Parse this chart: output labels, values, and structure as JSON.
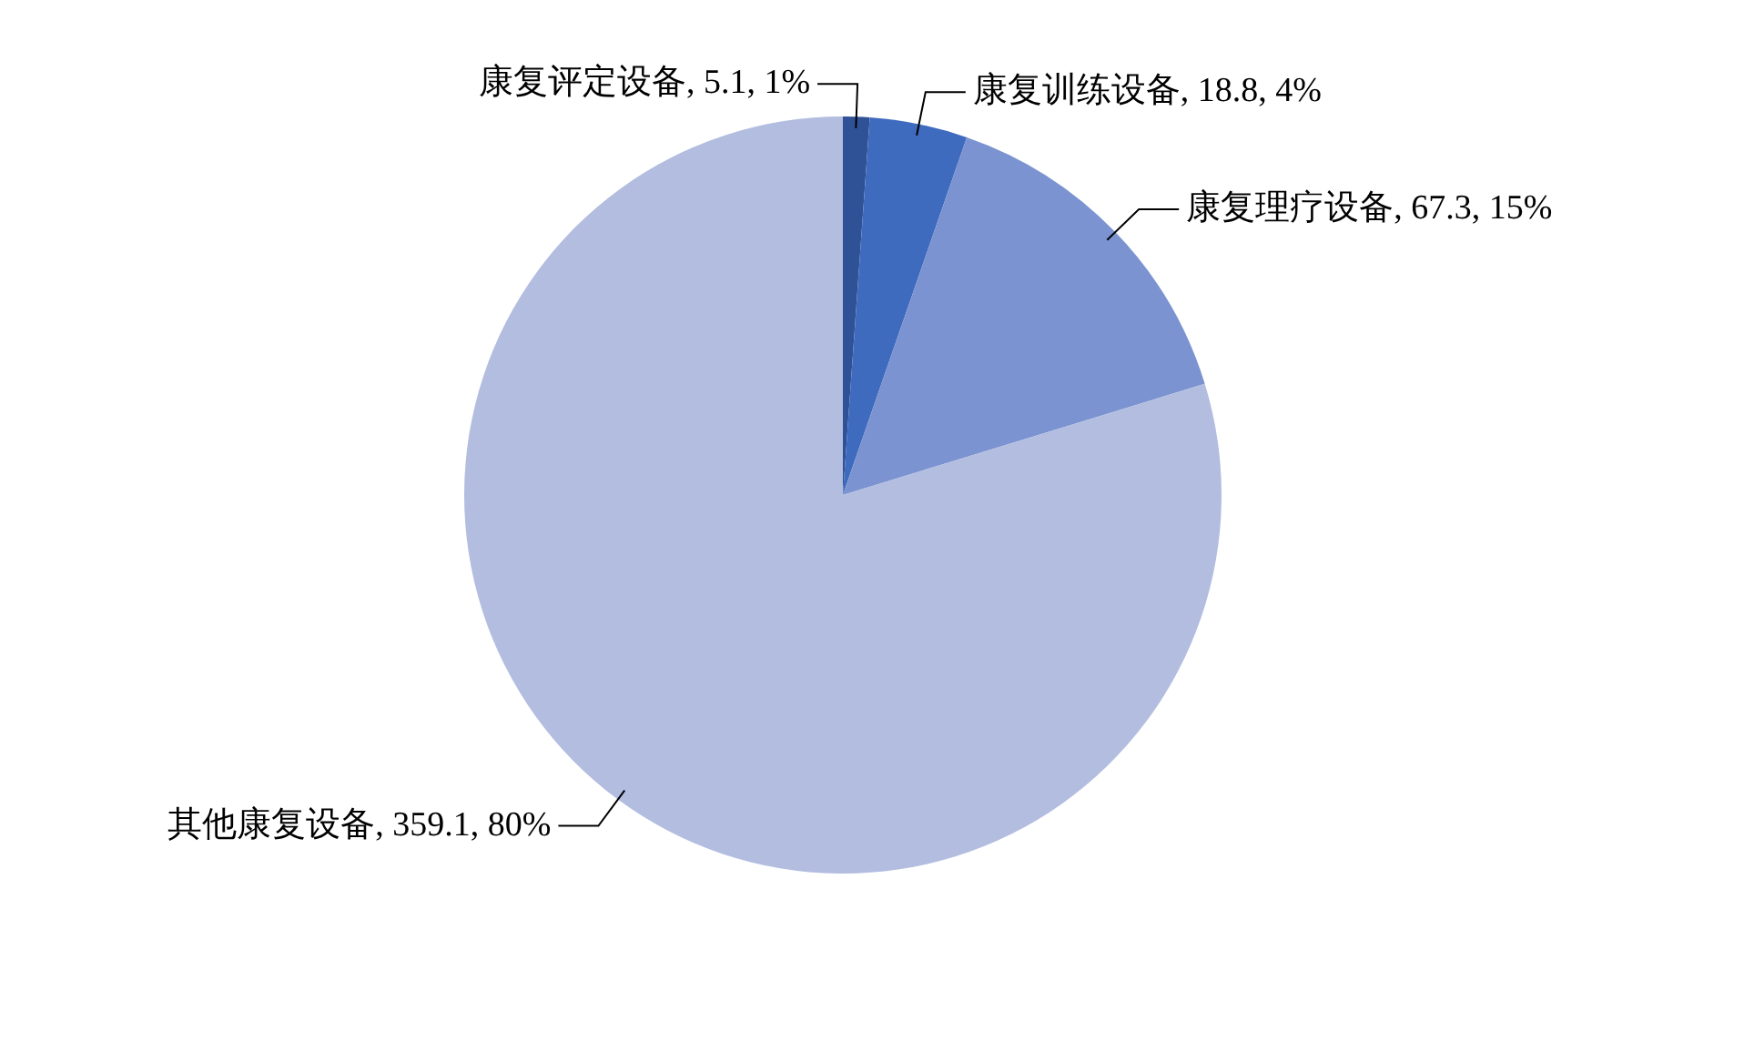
{
  "chart_data": {
    "type": "pie",
    "categories": [
      "康复评定设备",
      "康复训练设备",
      "康复理疗设备",
      "其他康复设备"
    ],
    "values": [
      5.1,
      18.8,
      67.3,
      359.1
    ],
    "colors": [
      "#2f5196",
      "#3f6bbf",
      "#7b93d0",
      "#b2bde0"
    ],
    "value_labels": [
      "5.1, 1%",
      "18.8, 4%",
      "67.3, 15%",
      "359.1, 80%"
    ],
    "legend": false
  }
}
